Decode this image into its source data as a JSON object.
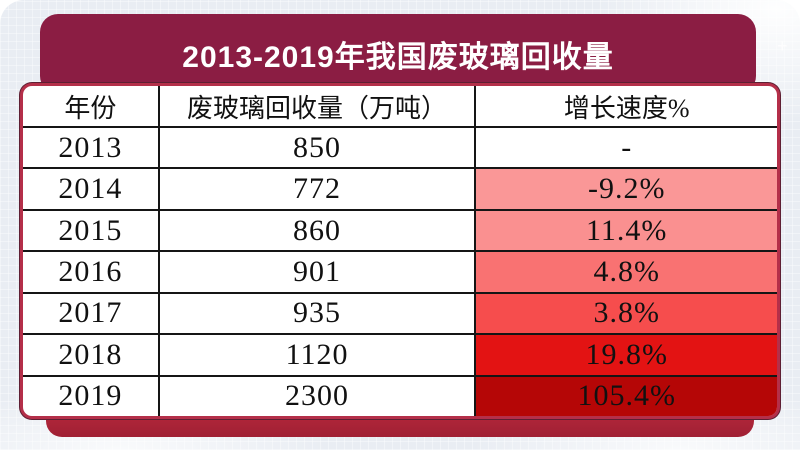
{
  "page": {
    "title": "2013-2019年我国废玻璃回收量",
    "sparkle_icon": "+"
  },
  "colors": {
    "page_background": "#e9edf3",
    "banner": "#8b1d43",
    "card_border": "#b42f49",
    "bottom_bar": "#ad2236",
    "grid_line": "#151515",
    "growth_heat_scale": [
      "#ffffff",
      "#fa9797",
      "#fa9090",
      "#f97272",
      "#f64d4d",
      "#e31313",
      "#b50606"
    ]
  },
  "table": {
    "headers": [
      "年份",
      "废玻璃回收量（万吨）",
      "增长速度%"
    ],
    "rows": [
      {
        "year": "2013",
        "volume": "850",
        "growth": "-",
        "growth_bg": "#ffffff"
      },
      {
        "year": "2014",
        "volume": "772",
        "growth": "-9.2%",
        "growth_bg": "#fa9797"
      },
      {
        "year": "2015",
        "volume": "860",
        "growth": "11.4%",
        "growth_bg": "#fa9090"
      },
      {
        "year": "2016",
        "volume": "901",
        "growth": "4.8%",
        "growth_bg": "#f97272"
      },
      {
        "year": "2017",
        "volume": "935",
        "growth": "3.8%",
        "growth_bg": "#f64d4d"
      },
      {
        "year": "2018",
        "volume": "1120",
        "growth": "19.8%",
        "growth_bg": "#e31313"
      },
      {
        "year": "2019",
        "volume": "2300",
        "growth": "105.4%",
        "growth_bg": "#b50606"
      }
    ]
  },
  "chart_data": {
    "type": "table",
    "title": "2013-2019年我国废玻璃回收量",
    "columns": [
      "年份",
      "废玻璃回收量（万吨）",
      "增长速度%"
    ],
    "years": [
      2013,
      2014,
      2015,
      2016,
      2017,
      2018,
      2019
    ],
    "recycling_volume_10k_tons": [
      850,
      772,
      860,
      901,
      935,
      1120,
      2300
    ],
    "growth_rate_percent": [
      null,
      -9.2,
      11.4,
      4.8,
      3.8,
      19.8,
      105.4
    ]
  }
}
